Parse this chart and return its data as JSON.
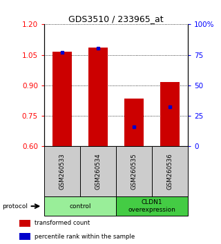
{
  "title": "GDS3510 / 233965_at",
  "samples": [
    "GSM260533",
    "GSM260534",
    "GSM260535",
    "GSM260536"
  ],
  "bar_tops": [
    1.065,
    1.085,
    0.835,
    0.915
  ],
  "bar_bottom": 0.6,
  "blue_values": [
    1.063,
    1.083,
    0.695,
    0.795
  ],
  "ylim_left": [
    0.6,
    1.2
  ],
  "ylim_right": [
    0,
    100
  ],
  "yticks_left": [
    0.6,
    0.75,
    0.9,
    1.05,
    1.2
  ],
  "yticks_right": [
    0,
    25,
    50,
    75,
    100
  ],
  "ytick_labels_right": [
    "0",
    "25",
    "50",
    "75",
    "100%"
  ],
  "groups": [
    {
      "label": "control",
      "samples": [
        0,
        1
      ],
      "color": "#99ee99"
    },
    {
      "label": "CLDN1\noverexpression",
      "samples": [
        2,
        3
      ],
      "color": "#44cc44"
    }
  ],
  "bar_color": "#cc0000",
  "blue_color": "#0000cc",
  "sample_box_color": "#cccccc",
  "grid_color": "#000000",
  "legend_items": [
    {
      "color": "#cc0000",
      "label": "transformed count"
    },
    {
      "color": "#0000cc",
      "label": "percentile rank within the sample"
    }
  ],
  "protocol_label": "protocol",
  "bar_width": 0.55
}
